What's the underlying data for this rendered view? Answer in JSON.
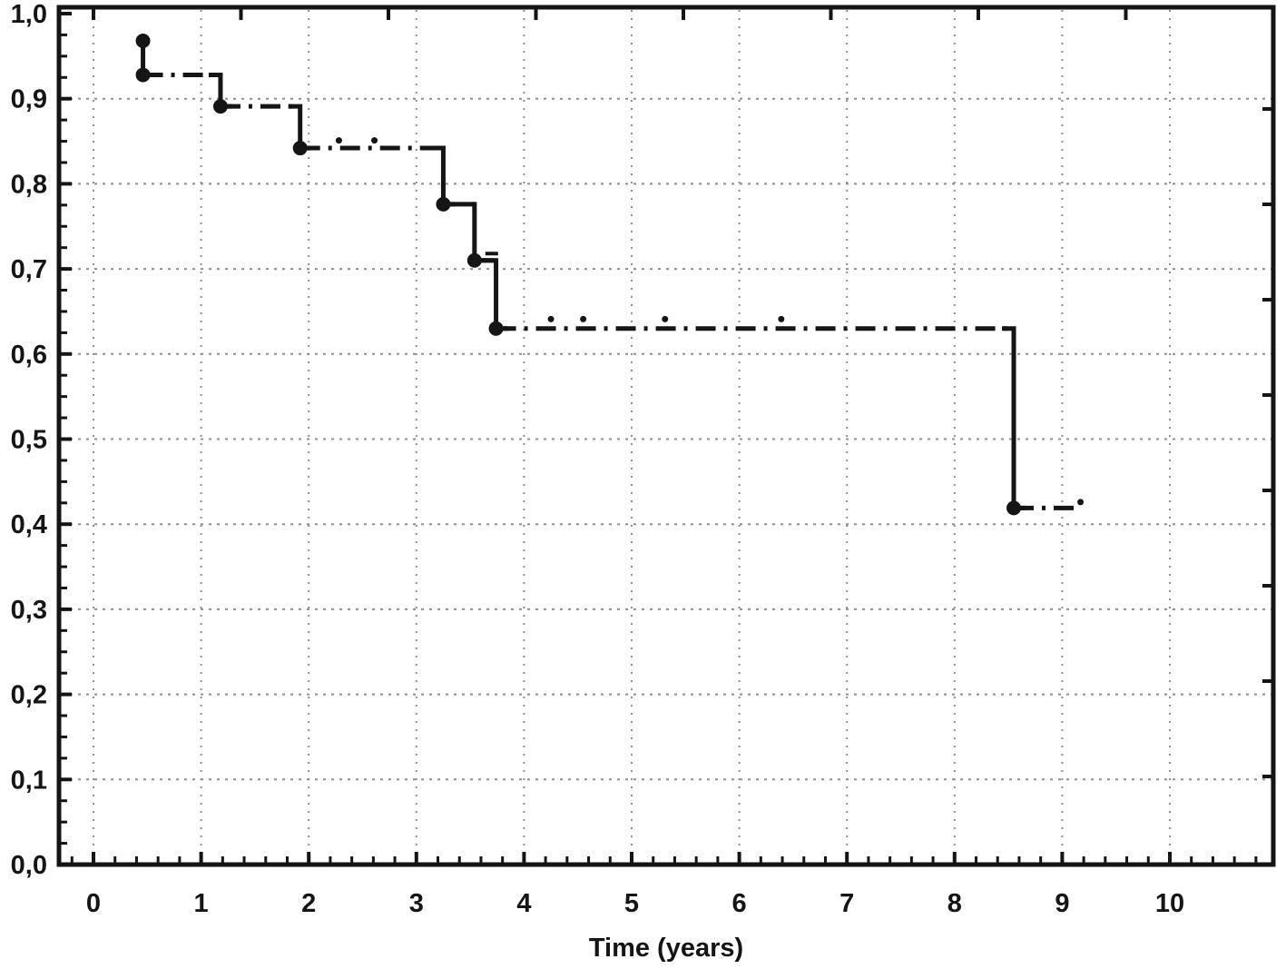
{
  "figure": {
    "background": "#ffffff",
    "ink_color": "#151515",
    "grid_color": "#8f8f8f"
  },
  "chart_data": {
    "type": "line",
    "subtype": "kaplan-meier-step-curve",
    "title": "",
    "xlabel": "Time (years)",
    "ylabel": "",
    "xlim": [
      -0.32,
      10.97
    ],
    "ylim": [
      0.0,
      1.007
    ],
    "grid": "dotted",
    "legend_position": "none",
    "x_major_ticks": [
      0,
      1,
      2,
      3,
      4,
      5,
      6,
      7,
      8,
      9,
      10
    ],
    "x_tick_labels": [
      "0",
      "1",
      "2",
      "3",
      "4",
      "5",
      "6",
      "7",
      "8",
      "9",
      "10"
    ],
    "x_minor_step": 0.2,
    "y_major_ticks": [
      0.0,
      0.1,
      0.2,
      0.3,
      0.4,
      0.5,
      0.6,
      0.7,
      0.8,
      0.9,
      1.0
    ],
    "y_tick_labels": [
      "0,0",
      "0,1",
      "0,2",
      "0,3",
      "0,4",
      "0,5",
      "0,6",
      "0,7",
      "0,8",
      "0,9",
      "1,0"
    ],
    "y_minor_step": 0.025,
    "series": [
      {
        "name": "survival-proportion",
        "step_points": [
          [
            0.46,
            0.968
          ],
          [
            0.46,
            0.928
          ],
          [
            1.18,
            0.928
          ],
          [
            1.18,
            0.891
          ],
          [
            1.92,
            0.891
          ],
          [
            1.92,
            0.842
          ],
          [
            3.25,
            0.842
          ],
          [
            3.25,
            0.776
          ],
          [
            3.54,
            0.776
          ],
          [
            3.54,
            0.71
          ],
          [
            3.74,
            0.71
          ],
          [
            3.74,
            0.63
          ],
          [
            8.55,
            0.63
          ],
          [
            8.55,
            0.419
          ],
          [
            9.13,
            0.419
          ]
        ]
      }
    ],
    "event_markers": [
      [
        0.46,
        0.968
      ],
      [
        0.46,
        0.928
      ],
      [
        1.18,
        0.891
      ],
      [
        1.92,
        0.842
      ],
      [
        3.25,
        0.776
      ],
      [
        3.54,
        0.71
      ],
      [
        3.74,
        0.63
      ],
      [
        8.55,
        0.419
      ]
    ],
    "censored_marks": [
      {
        "x": 2.28,
        "y": 0.851,
        "shape": "dot"
      },
      {
        "x": 2.61,
        "y": 0.851,
        "shape": "dot"
      },
      {
        "x": 3.7,
        "y": 0.718,
        "shape": "dash"
      },
      {
        "x": 4.25,
        "y": 0.641,
        "shape": "dot"
      },
      {
        "x": 4.55,
        "y": 0.641,
        "shape": "dot"
      },
      {
        "x": 5.31,
        "y": 0.641,
        "shape": "dot"
      },
      {
        "x": 6.39,
        "y": 0.641,
        "shape": "dot"
      },
      {
        "x": 9.17,
        "y": 0.426,
        "shape": "dot"
      }
    ]
  }
}
